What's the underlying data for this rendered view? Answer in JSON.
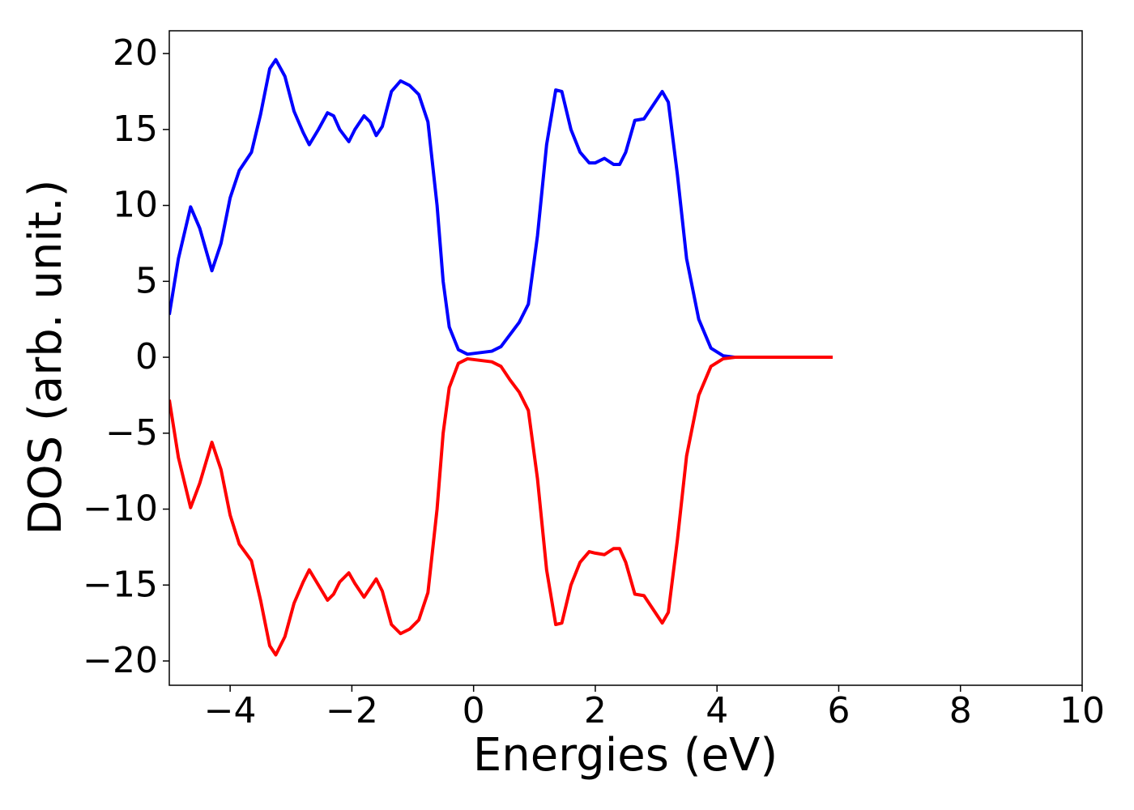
{
  "chart_data": {
    "type": "line",
    "xlabel": "Energies (eV)",
    "ylabel": "DOS (arb. unit.)",
    "xlim": [
      -5,
      10
    ],
    "ylim": [
      -21.6,
      21.5
    ],
    "xticks": [
      {
        "value": -4,
        "label": "−4"
      },
      {
        "value": -2,
        "label": "−2"
      },
      0,
      2,
      4,
      6,
      8,
      10
    ],
    "yticks": [
      {
        "value": -20,
        "label": "−20"
      },
      {
        "value": -15,
        "label": "−15"
      },
      {
        "value": -10,
        "label": "−10"
      },
      {
        "value": -5,
        "label": "−5"
      },
      0,
      5,
      10,
      15,
      20
    ],
    "grid": false,
    "x": [
      -5.0,
      -4.85,
      -4.65,
      -4.5,
      -4.3,
      -4.15,
      -4.0,
      -3.85,
      -3.65,
      -3.5,
      -3.35,
      -3.25,
      -3.1,
      -2.95,
      -2.8,
      -2.7,
      -2.55,
      -2.4,
      -2.3,
      -2.2,
      -2.05,
      -1.95,
      -1.8,
      -1.7,
      -1.6,
      -1.5,
      -1.35,
      -1.2,
      -1.05,
      -0.9,
      -0.75,
      -0.6,
      -0.5,
      -0.4,
      -0.25,
      -0.1,
      0.1,
      0.3,
      0.45,
      0.6,
      0.75,
      0.9,
      1.05,
      1.2,
      1.35,
      1.45,
      1.6,
      1.75,
      1.9,
      2.0,
      2.15,
      2.3,
      2.4,
      2.5,
      2.65,
      2.8,
      2.95,
      3.1,
      3.2,
      3.35,
      3.5,
      3.7,
      3.9,
      4.1,
      4.3,
      5.0,
      5.9
    ],
    "series": [
      {
        "color": "#0000ff",
        "values": [
          2.8,
          6.5,
          9.9,
          8.5,
          5.7,
          7.5,
          10.5,
          12.3,
          13.5,
          16,
          19,
          19.6,
          18.5,
          16.2,
          14.8,
          14.0,
          15,
          16.1,
          15.9,
          15,
          14.2,
          15,
          15.9,
          15.5,
          14.6,
          15.2,
          17.5,
          18.2,
          17.9,
          17.3,
          15.5,
          10,
          5,
          2,
          0.5,
          0.2,
          0.3,
          0.4,
          0.7,
          1.5,
          2.3,
          3.5,
          8,
          14,
          17.6,
          17.5,
          15,
          13.5,
          12.8,
          12.8,
          13.1,
          12.7,
          12.7,
          13.5,
          15.6,
          15.7,
          16.6,
          17.5,
          16.8,
          12,
          6.5,
          2.5,
          0.6,
          0.1,
          0,
          0,
          0
        ]
      },
      {
        "color": "#ff0000",
        "values": [
          -2.8,
          -6.6,
          -9.9,
          -8.3,
          -5.6,
          -7.4,
          -10.4,
          -12.3,
          -13.4,
          -16,
          -19,
          -19.6,
          -18.4,
          -16.2,
          -14.8,
          -14.0,
          -15,
          -16.0,
          -15.6,
          -14.8,
          -14.2,
          -14.9,
          -15.8,
          -15.2,
          -14.6,
          -15.4,
          -17.6,
          -18.2,
          -17.9,
          -17.3,
          -15.5,
          -10,
          -5,
          -2,
          -0.4,
          -0.1,
          -0.2,
          -0.3,
          -0.6,
          -1.5,
          -2.3,
          -3.5,
          -8,
          -14,
          -17.6,
          -17.5,
          -15,
          -13.5,
          -12.8,
          -12.9,
          -13.0,
          -12.6,
          -12.6,
          -13.5,
          -15.6,
          -15.7,
          -16.6,
          -17.5,
          -16.8,
          -12,
          -6.5,
          -2.5,
          -0.6,
          -0.1,
          0,
          0,
          0
        ]
      }
    ]
  }
}
